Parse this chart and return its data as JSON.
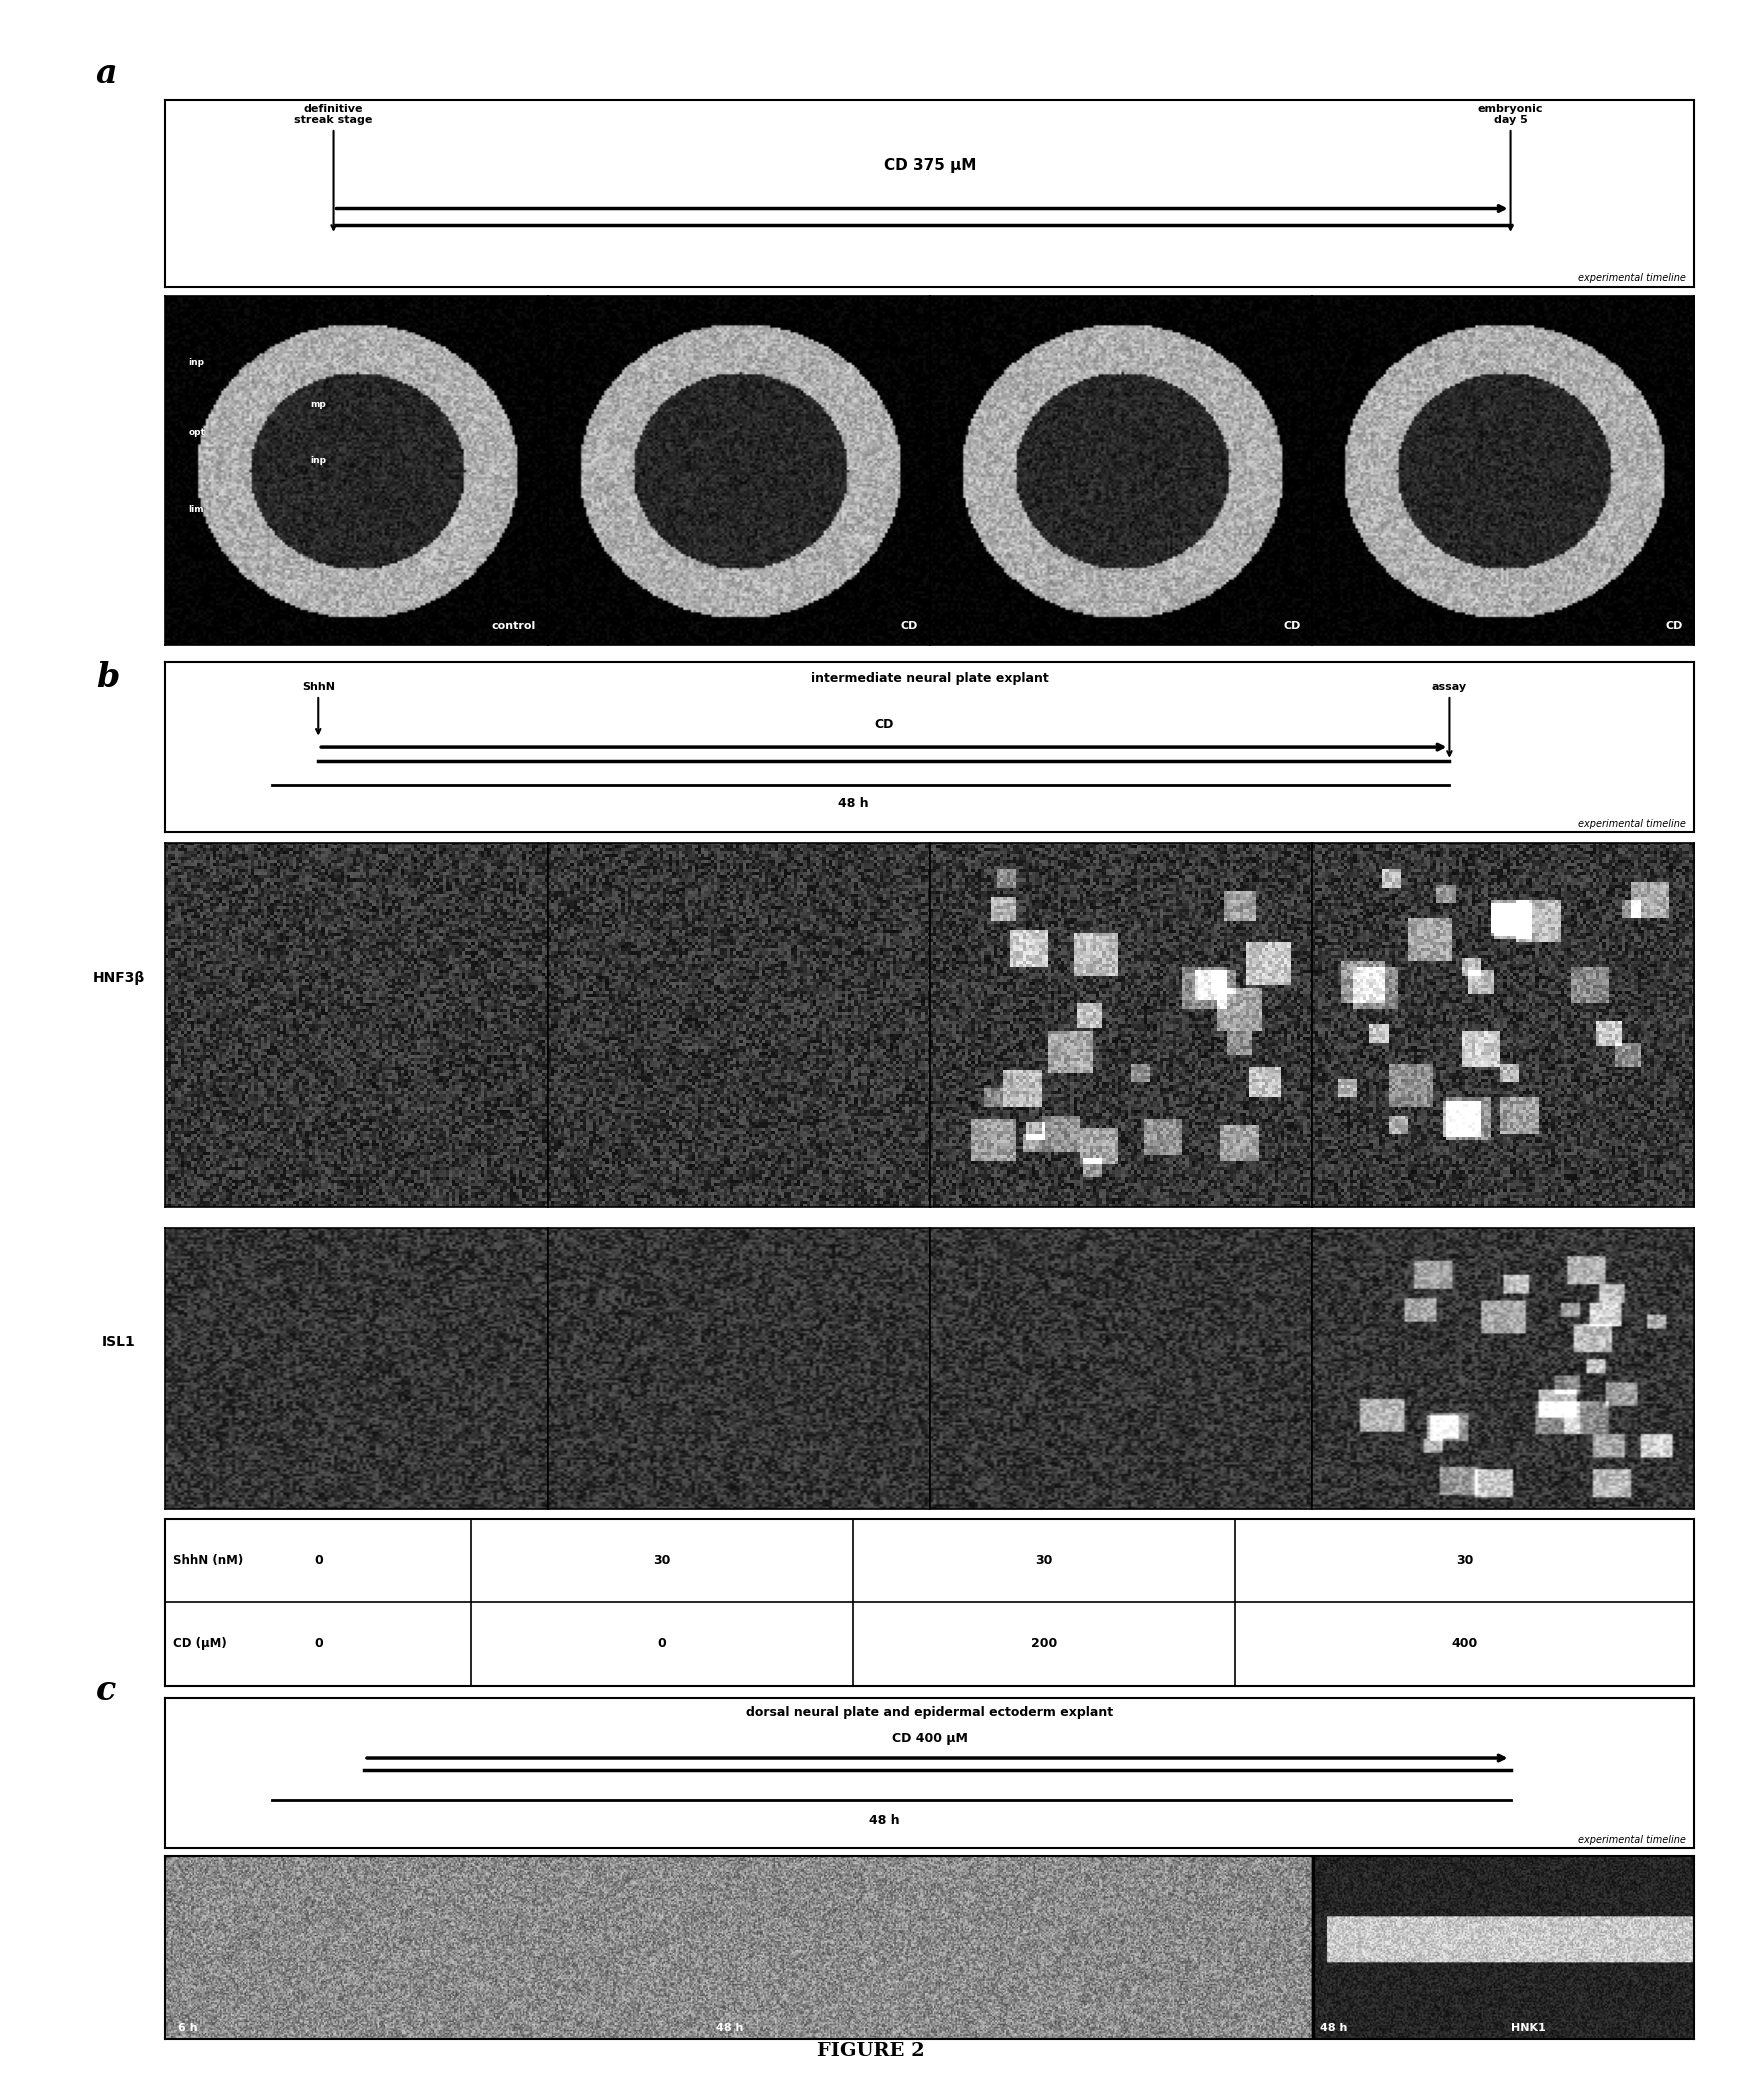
{
  "fig_width": 17.41,
  "fig_height": 20.81,
  "bg_color": "#ffffff",
  "panel_a": {
    "timeline_text": "CD 375 μM",
    "left_label": "definitive\nstreak stage",
    "right_label": "embryonic\nday 5",
    "right_bottom_label": "experimental timeline",
    "image_labels": [
      "control",
      "CD",
      "CD",
      "CD"
    ],
    "num_images": 4
  },
  "panel_b": {
    "top_label": "intermediate neural plate explant",
    "arrow1_label": "ShhN",
    "cd_label": "CD",
    "time_label": "48 h",
    "assay_label": "assay",
    "right_bottom_label": "experimental timeline",
    "row_labels": [
      "HNF3β",
      "ISL1"
    ],
    "col_headers": [
      "ShhN (nM)",
      "CD (μM)"
    ],
    "col_values": [
      [
        "0",
        "0"
      ],
      [
        "30",
        "0"
      ],
      [
        "30",
        "200"
      ],
      [
        "30",
        "400"
      ]
    ],
    "num_cols": 4,
    "num_rows": 2
  },
  "panel_c": {
    "top_label": "dorsal neural plate and epidermal ectoderm explant",
    "cd_label": "CD 400 μM",
    "time_label": "48 h",
    "right_bottom_label": "experimental timeline",
    "label_6h": "6 h",
    "label_48h_left": "48 h",
    "label_48h_right": "48 h",
    "hnk_label": "HNK1"
  },
  "figure_label": "FIGURE 2",
  "panel_a_label": "a",
  "panel_b_label": "b",
  "panel_c_label": "c"
}
